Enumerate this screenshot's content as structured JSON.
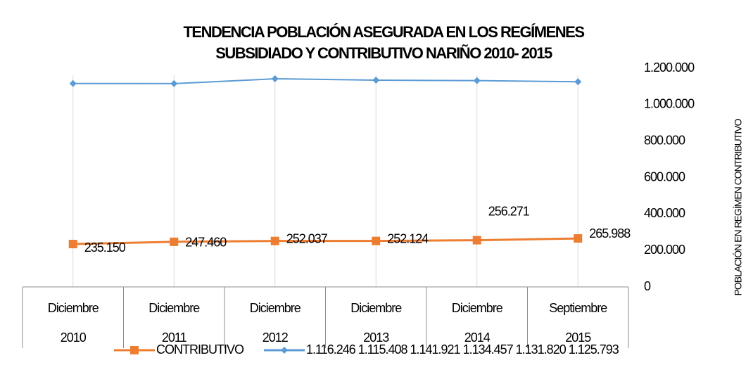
{
  "chart_data": {
    "type": "line",
    "title": [
      "TENDENCIA POBLACIÓN ASEGURADA EN LOS REGÍMENES",
      "SUBSIDIADO Y CONTRIBUTIVO NARIÑO 2010- 2015"
    ],
    "y_label": "POBLACIÓN EN REGÍMEN CONTRIBUTIVO",
    "categories": [
      [
        "Diciembre",
        "2010"
      ],
      [
        "Diciembre",
        "2011"
      ],
      [
        "Diciembre",
        "2012"
      ],
      [
        "Diciembre",
        "2013"
      ],
      [
        "Diciembre",
        "2014"
      ],
      [
        "Septiembre",
        "2015"
      ]
    ],
    "series": [
      {
        "name": "CONTRIBUTIVO",
        "color": "#ed7d31",
        "marker": "square",
        "values": [
          235150,
          247460,
          252037,
          252124,
          256271,
          265988
        ],
        "value_labels": [
          "235.150",
          "247.460",
          "252.037",
          "252.124",
          "256.271",
          "265.988"
        ]
      },
      {
        "name": "1.116.246 1.115.408 1.141.921 1.134.457 1.131.820 1.125.793",
        "color": "#5b9bd5",
        "marker": "diamond",
        "values": [
          1116246,
          1115408,
          1141921,
          1134457,
          1131820,
          1125793
        ]
      }
    ],
    "ylim": [
      0,
      1200000
    ],
    "yticks": [
      0,
      {
        "value": 200000,
        "label": "200.000"
      },
      {
        "value": 400000,
        "label": "400.000"
      },
      {
        "value": 600000,
        "label": "600.000"
      },
      {
        "value": 800000,
        "label": "800.000"
      },
      {
        "value": 1000000,
        "label": "1.000.000"
      },
      {
        "value": 1200000,
        "label": "1.200.000"
      }
    ],
    "grid": true,
    "legend": "bottom"
  }
}
